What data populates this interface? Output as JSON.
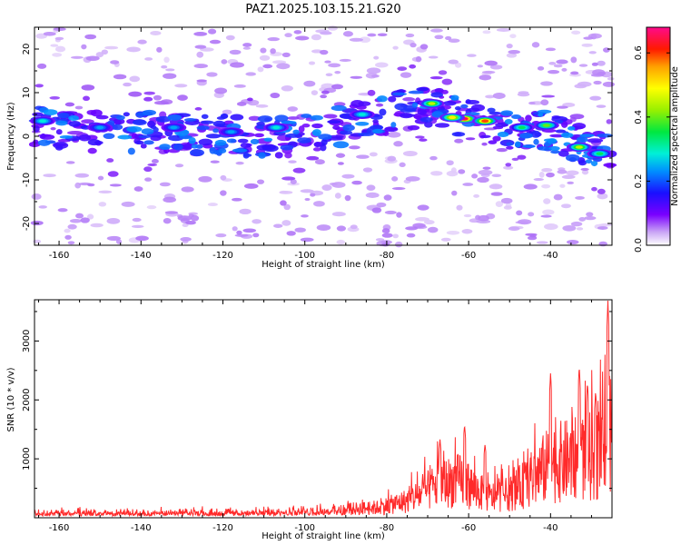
{
  "title": "PAZ1.2025.103.15.21.G20",
  "chart_data": [
    {
      "type": "heatmap",
      "xlabel": "Height of straight line (km)",
      "ylabel": "Frequency (Hz)",
      "xlim": [
        -166,
        -25
      ],
      "ylim": [
        -25,
        25
      ],
      "x_ticks": [
        -160,
        -140,
        -120,
        -100,
        -80,
        -60,
        -40
      ],
      "y_ticks": [
        -20,
        -10,
        0,
        10,
        20
      ],
      "ridge": [
        {
          "x": -165,
          "y": 2
        },
        {
          "x": -150,
          "y": 1
        },
        {
          "x": -135,
          "y": 1
        },
        {
          "x": -120,
          "y": 0
        },
        {
          "x": -105,
          "y": 0
        },
        {
          "x": -95,
          "y": 1
        },
        {
          "x": -85,
          "y": 4
        },
        {
          "x": -75,
          "y": 6
        },
        {
          "x": -68,
          "y": 7
        },
        {
          "x": -60,
          "y": 4
        },
        {
          "x": -50,
          "y": 2
        },
        {
          "x": -40,
          "y": 1
        },
        {
          "x": -30,
          "y": -3
        },
        {
          "x": -25,
          "y": -4
        }
      ],
      "hotspots": [
        {
          "x": -69,
          "y": 7.5,
          "v": 0.45
        },
        {
          "x": -61,
          "y": 4,
          "v": 0.65
        },
        {
          "x": -56,
          "y": 3.5,
          "v": 0.6
        },
        {
          "x": -64,
          "y": 4.3,
          "v": 0.5
        },
        {
          "x": -41,
          "y": 2.5,
          "v": 0.4
        },
        {
          "x": -47,
          "y": 2,
          "v": 0.35
        },
        {
          "x": -33,
          "y": -2.5,
          "v": 0.45
        },
        {
          "x": -28,
          "y": -4,
          "v": 0.35
        },
        {
          "x": -86,
          "y": 5,
          "v": 0.3
        },
        {
          "x": -107,
          "y": 2,
          "v": 0.3
        },
        {
          "x": -118,
          "y": 1,
          "v": 0.25
        },
        {
          "x": -132,
          "y": 2,
          "v": 0.25
        },
        {
          "x": -150,
          "y": 2,
          "v": 0.25
        },
        {
          "x": -164,
          "y": 3.5,
          "v": 0.3
        }
      ],
      "colorbar": {
        "label": "Normalized spectral amplitude",
        "range": [
          0.0,
          0.68
        ],
        "ticks": [
          0.0,
          0.2,
          0.4,
          0.6
        ],
        "tick_labels": [
          "0.0",
          "0.2",
          "0.4",
          "0.6"
        ]
      }
    },
    {
      "type": "line",
      "xlabel": "Height of straight line (km)",
      "ylabel": "SNR (10 * v/v)",
      "xlim": [
        -166,
        -25
      ],
      "ylim": [
        0,
        3700
      ],
      "x_ticks": [
        -160,
        -140,
        -120,
        -100,
        -80,
        -60,
        -40
      ],
      "y_ticks": [
        1000,
        2000,
        3000
      ],
      "color": "#ff2a2a",
      "envelope": [
        {
          "x": -166,
          "y": 120
        },
        {
          "x": -140,
          "y": 130
        },
        {
          "x": -110,
          "y": 150
        },
        {
          "x": -95,
          "y": 220
        },
        {
          "x": -82,
          "y": 300
        },
        {
          "x": -75,
          "y": 500
        },
        {
          "x": -70,
          "y": 800
        },
        {
          "x": -67,
          "y": 1000
        },
        {
          "x": -62,
          "y": 1100
        },
        {
          "x": -55,
          "y": 600
        },
        {
          "x": -50,
          "y": 700
        },
        {
          "x": -45,
          "y": 1100
        },
        {
          "x": -40,
          "y": 1600
        },
        {
          "x": -35,
          "y": 1700
        },
        {
          "x": -30,
          "y": 1800
        },
        {
          "x": -27,
          "y": 2000
        },
        {
          "x": -25,
          "y": 2600
        }
      ],
      "peaks": [
        {
          "x": -61,
          "y": 1580
        },
        {
          "x": -67,
          "y": 1330
        },
        {
          "x": -40,
          "y": 2460
        },
        {
          "x": -33,
          "y": 2580
        },
        {
          "x": -31,
          "y": 2300
        },
        {
          "x": -26,
          "y": 3700
        },
        {
          "x": -29,
          "y": 2150
        },
        {
          "x": -56,
          "y": 1250
        }
      ]
    }
  ]
}
